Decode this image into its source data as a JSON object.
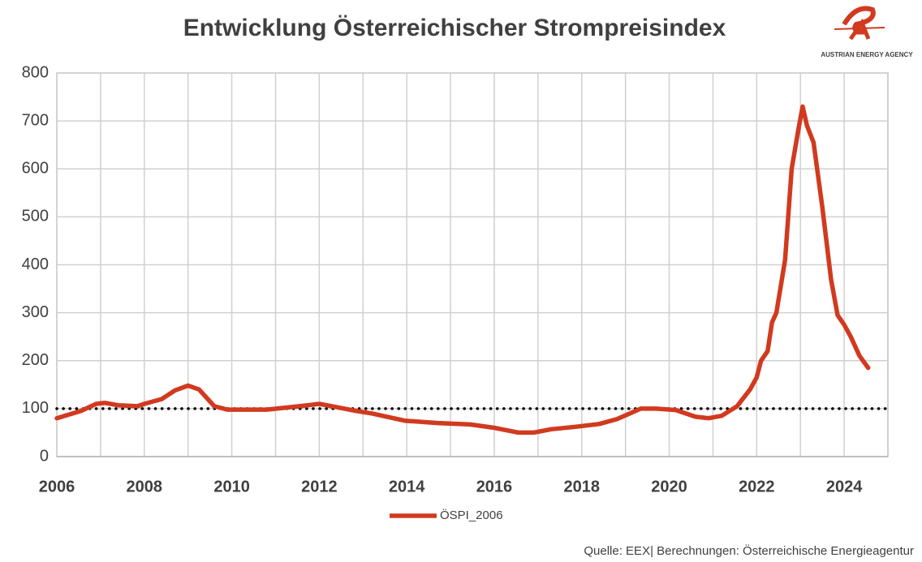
{
  "chart_data": {
    "type": "line",
    "title": "Entwicklung Österreichischer Strompreisindex",
    "x": [
      2006.0,
      2006.55,
      2006.9,
      2007.1,
      2007.4,
      2007.85,
      2008.0,
      2008.4,
      2008.7,
      2009.0,
      2009.25,
      2009.6,
      2009.9,
      2010.25,
      2010.8,
      2011.55,
      2012.0,
      2012.4,
      2012.85,
      2013.2,
      2013.95,
      2014.7,
      2015.45,
      2016.0,
      2016.55,
      2016.9,
      2017.3,
      2017.85,
      2018.4,
      2018.8,
      2019.35,
      2019.7,
      2020.15,
      2020.6,
      2020.9,
      2021.2,
      2021.55,
      2021.85,
      2022.0,
      2022.1,
      2022.25,
      2022.35,
      2022.45,
      2022.65,
      2022.8,
      2022.95,
      2023.05,
      2023.15,
      2023.3,
      2023.5,
      2023.7,
      2023.85,
      2024.0,
      2024.15,
      2024.35,
      2024.55
    ],
    "series": [
      {
        "name": "ÖSPI_2006",
        "color": "#d13a1f",
        "values": [
          80,
          95,
          110,
          112,
          107,
          105,
          110,
          120,
          138,
          148,
          140,
          105,
          98,
          98,
          98,
          105,
          110,
          103,
          95,
          90,
          75,
          70,
          67,
          60,
          50,
          50,
          57,
          62,
          68,
          78,
          100,
          100,
          97,
          83,
          80,
          85,
          105,
          140,
          165,
          200,
          220,
          280,
          300,
          410,
          600,
          680,
          730,
          690,
          655,
          520,
          370,
          295,
          275,
          250,
          210,
          185
        ]
      }
    ],
    "xlim": [
      2006,
      2025
    ],
    "xticks": [
      2006,
      2008,
      2010,
      2012,
      2014,
      2016,
      2018,
      2020,
      2022,
      2024
    ],
    "ylim": [
      0,
      800
    ],
    "yticks": [
      0,
      100,
      200,
      300,
      400,
      500,
      600,
      700,
      800
    ],
    "grid": true,
    "hline": 100,
    "legend": "bottom",
    "source": "Quelle: EEX| Berechnungen: Österreichische Energieagentur"
  },
  "logo": {
    "text": "AUSTRIAN ENERGY AGENCY"
  }
}
